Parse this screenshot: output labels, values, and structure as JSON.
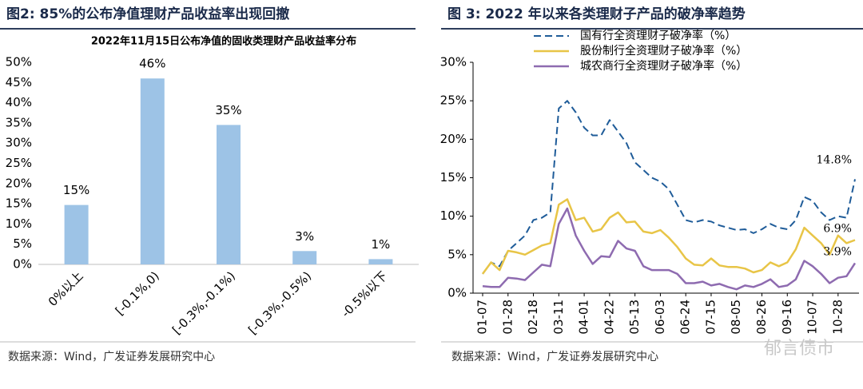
{
  "chart_data": [
    {
      "type": "bar",
      "heading": "图2: 85%的公布净值理财产品收益率出现回撤",
      "title": "2022年11月15日公布净值的固收类理财产品收益率分布",
      "categories": [
        "0%以上",
        "[-0.1%,0)",
        "[-0.3%,-0.1%)",
        "[-0.3%,-0.5%)",
        "-0.5%以下"
      ],
      "values": [
        14.7,
        46,
        34.5,
        3.3,
        1.3
      ],
      "value_labels": [
        "15%",
        "46%",
        "35%",
        "3%",
        "1%"
      ],
      "color": "#9dc3e6",
      "ylim": [
        0,
        50
      ],
      "yticks": [
        {
          "value": 0,
          "label": "0%"
        },
        {
          "value": 5,
          "label": "5%"
        },
        {
          "value": 10,
          "label": "10%"
        },
        {
          "value": 15,
          "label": "15%"
        },
        {
          "value": 20,
          "label": "20%"
        },
        {
          "value": 25,
          "label": "25%"
        },
        {
          "value": 30,
          "label": "30%"
        },
        {
          "value": 35,
          "label": "35%"
        },
        {
          "value": 40,
          "label": "40%"
        },
        {
          "value": 45,
          "label": "45%"
        },
        {
          "value": 50,
          "label": "50%"
        }
      ],
      "grid": false,
      "source": "数据来源：Wind，广发证券发展研究中心"
    },
    {
      "type": "line",
      "heading": "图 3:  2022 年以来各类理财子产品的破净率趋势",
      "categories": [
        "01-07",
        null,
        null,
        "01-28",
        null,
        null,
        "02-18",
        null,
        null,
        "03-11",
        null,
        null,
        "04-01",
        null,
        null,
        "04-22",
        null,
        null,
        "05-13",
        null,
        null,
        "06-03",
        null,
        null,
        "06-24",
        null,
        null,
        "07-15",
        null,
        null,
        "08-05",
        null,
        null,
        "08-26",
        null,
        null,
        "09-16",
        null,
        null,
        "10-07",
        null,
        null,
        "10-28",
        null,
        null
      ],
      "series": [
        {
          "name": "国有行全资理财子破净率（%）",
          "color": "#1f5c99",
          "dash": true,
          "values": [
            2.5,
            4,
            3.5,
            5.5,
            6.5,
            7.5,
            9.5,
            9.8,
            10.5,
            24,
            25,
            23.5,
            21.5,
            20.5,
            20.5,
            22.5,
            21,
            19.5,
            17,
            16,
            15,
            14.5,
            13.5,
            11.5,
            9.5,
            9.2,
            9.5,
            9.3,
            8.8,
            8.5,
            8.2,
            8.3,
            7.8,
            8.3,
            9,
            8.5,
            8.3,
            9.5,
            12.5,
            12,
            10.5,
            9.5,
            10,
            9.8,
            14.8
          ],
          "value_labels": [
            null,
            null,
            null,
            null,
            null,
            null,
            null,
            null,
            null,
            null,
            null,
            null,
            null,
            null,
            null,
            null,
            null,
            null,
            null,
            null,
            null,
            null,
            null,
            null,
            null,
            null,
            null,
            null,
            null,
            null,
            null,
            null,
            null,
            null,
            null,
            null,
            null,
            null,
            null,
            null,
            null,
            null,
            null,
            null,
            "14.8%"
          ]
        },
        {
          "name": "股份制行全资理财子破净率（%）",
          "color": "#e8c547",
          "dash": false,
          "values": [
            2.5,
            4,
            3,
            5.5,
            5.3,
            5,
            5.6,
            6.2,
            6.5,
            11.5,
            12.2,
            9.5,
            9.8,
            8,
            8.3,
            9.8,
            10.5,
            9.2,
            9.3,
            8,
            7.8,
            8.2,
            7.2,
            6,
            4.5,
            3.7,
            3.6,
            4.5,
            3.6,
            3.4,
            3.4,
            3.2,
            2.7,
            3,
            4,
            3.5,
            4,
            5.7,
            8.5,
            7.5,
            6.5,
            5,
            7.5,
            6.5,
            6.9
          ],
          "value_labels": [
            null,
            null,
            null,
            null,
            null,
            null,
            null,
            null,
            null,
            null,
            null,
            null,
            null,
            null,
            null,
            null,
            null,
            null,
            null,
            null,
            null,
            null,
            null,
            null,
            null,
            null,
            null,
            null,
            null,
            null,
            null,
            null,
            null,
            null,
            null,
            null,
            null,
            null,
            null,
            null,
            null,
            null,
            null,
            null,
            "6.9%"
          ]
        },
        {
          "name": "城农商行全资理财子破净率（%）",
          "color": "#8e6bb0",
          "dash": false,
          "values": [
            0.9,
            0.8,
            0.8,
            2,
            1.9,
            1.7,
            2.7,
            3.7,
            3.5,
            9,
            11,
            7.5,
            5.5,
            3.8,
            4.8,
            4.7,
            6.8,
            5.8,
            5.5,
            3.5,
            3,
            3,
            3,
            2.5,
            1.3,
            1.3,
            1.5,
            1,
            1.2,
            0.8,
            0.5,
            1,
            0.8,
            1.2,
            1.8,
            0.8,
            1,
            1.8,
            4.2,
            3.5,
            2.5,
            1.3,
            2,
            2.2,
            3.9
          ],
          "value_labels": [
            null,
            null,
            null,
            null,
            null,
            null,
            null,
            null,
            null,
            null,
            null,
            null,
            null,
            null,
            null,
            null,
            null,
            null,
            null,
            null,
            null,
            null,
            null,
            null,
            null,
            null,
            null,
            null,
            null,
            null,
            null,
            null,
            null,
            null,
            null,
            null,
            null,
            null,
            null,
            null,
            null,
            null,
            null,
            null,
            "3.9%"
          ]
        }
      ],
      "ylim": [
        0,
        30
      ],
      "yticks": [
        {
          "value": 0,
          "label": "0%"
        },
        {
          "value": 5,
          "label": "5%"
        },
        {
          "value": 10,
          "label": "10%"
        },
        {
          "value": 15,
          "label": "15%"
        },
        {
          "value": 20,
          "label": "20%"
        },
        {
          "value": 25,
          "label": "25%"
        },
        {
          "value": 30,
          "label": "30%"
        }
      ],
      "grid": false,
      "source": "数据来源：Wind，广发证券发展研究中心",
      "watermark": "郁言债市"
    }
  ]
}
